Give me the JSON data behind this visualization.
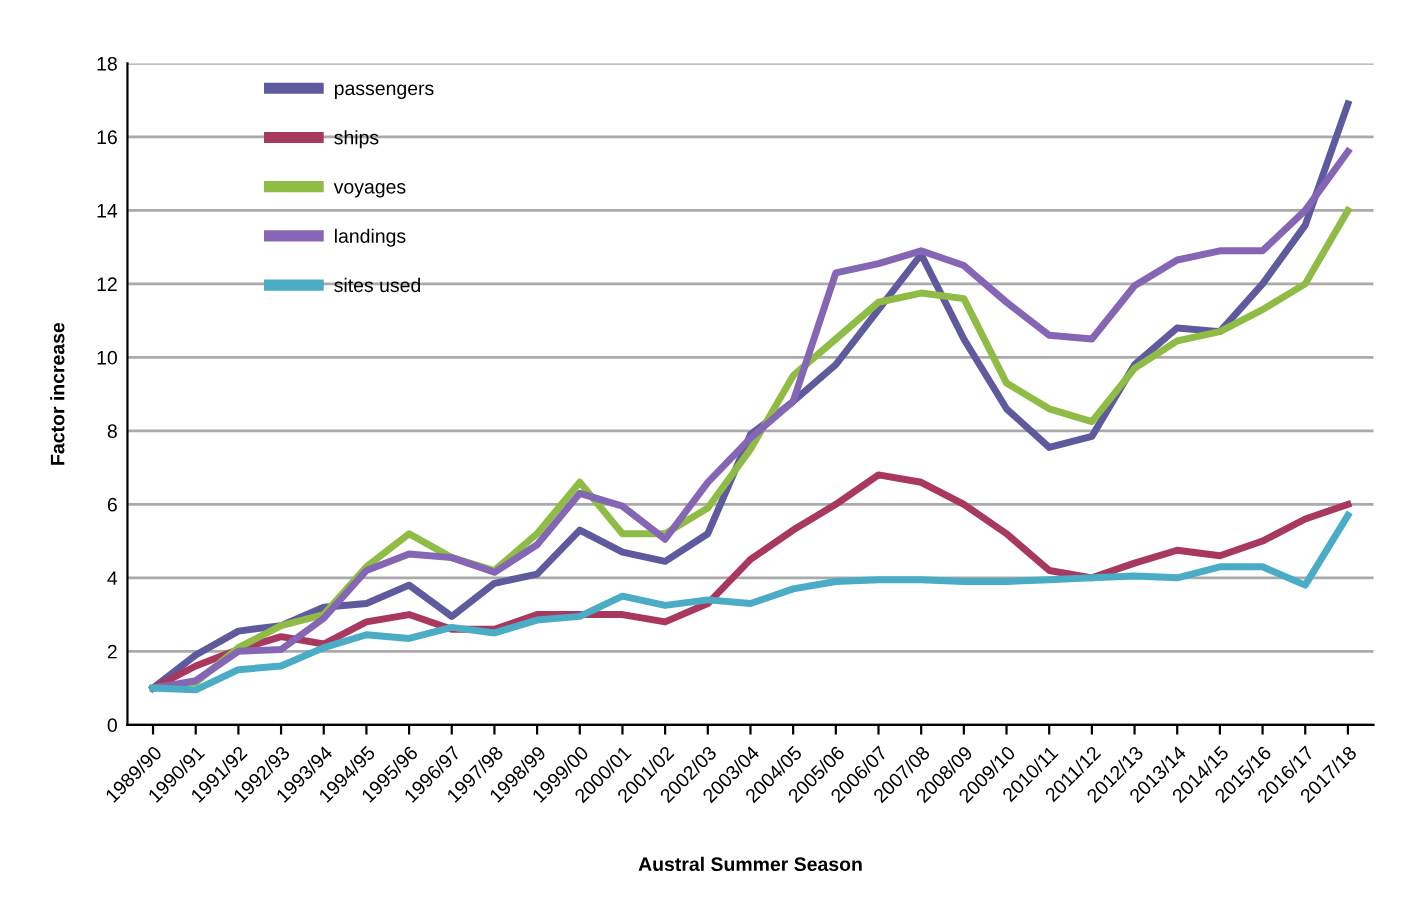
{
  "chart_data": {
    "type": "line",
    "xlabel": "Austral Summer Season",
    "ylabel": "Factor increase",
    "categories": [
      "1989/90",
      "1990/91",
      "1991/92",
      "1992/93",
      "1993/94",
      "1994/95",
      "1995/96",
      "1996/97",
      "1997/98",
      "1998/99",
      "1999/00",
      "2000/01",
      "2001/02",
      "2002/03",
      "2003/04",
      "2004/05",
      "2005/06",
      "2006/07",
      "2007/08",
      "2008/09",
      "2009/10",
      "2010/11",
      "2011/12",
      "2012/13",
      "2013/14",
      "2014/15",
      "2015/16",
      "2016/17",
      "2017/18"
    ],
    "series": [
      {
        "name": "passengers",
        "color": "#5f5a9e",
        "values": [
          1.0,
          1.9,
          2.55,
          2.7,
          3.2,
          3.3,
          3.8,
          2.95,
          3.85,
          4.1,
          5.3,
          4.7,
          4.45,
          5.2,
          7.9,
          8.8,
          9.8,
          11.3,
          12.8,
          10.5,
          8.6,
          7.55,
          7.85,
          9.8,
          10.8,
          10.7,
          12.0,
          13.6,
          16.9
        ]
      },
      {
        "name": "ships",
        "color": "#a8385d",
        "values": [
          1.0,
          1.6,
          2.05,
          2.4,
          2.2,
          2.8,
          3.0,
          2.6,
          2.6,
          3.0,
          3.0,
          3.0,
          2.8,
          3.3,
          4.5,
          5.3,
          6.0,
          6.8,
          6.6,
          6.0,
          5.2,
          4.2,
          4.0,
          4.4,
          4.75,
          4.6,
          5.0,
          5.6,
          6.0
        ]
      },
      {
        "name": "voyages",
        "color": "#8fbc45",
        "values": [
          1.0,
          1.15,
          2.1,
          2.7,
          3.0,
          4.3,
          5.2,
          4.55,
          4.2,
          5.2,
          6.6,
          5.2,
          5.2,
          5.9,
          7.5,
          9.5,
          10.5,
          11.5,
          11.75,
          11.6,
          9.3,
          8.6,
          8.25,
          9.7,
          10.45,
          10.7,
          11.3,
          12.0,
          14.0
        ]
      },
      {
        "name": "landings",
        "color": "#8466b5",
        "values": [
          1.0,
          1.2,
          2.0,
          2.05,
          2.9,
          4.2,
          4.65,
          4.55,
          4.15,
          4.9,
          6.3,
          5.95,
          5.05,
          6.6,
          7.8,
          8.8,
          12.3,
          12.55,
          12.9,
          12.5,
          11.5,
          10.6,
          10.5,
          11.95,
          12.65,
          12.9,
          12.9,
          14.0,
          15.6
        ]
      },
      {
        "name": "sites used",
        "color": "#4bacc6",
        "values": [
          1.0,
          0.95,
          1.5,
          1.6,
          2.1,
          2.45,
          2.35,
          2.65,
          2.5,
          2.85,
          2.95,
          3.5,
          3.25,
          3.4,
          3.3,
          3.7,
          3.9,
          3.95,
          3.95,
          3.9,
          3.9,
          3.95,
          4.0,
          4.05,
          4.0,
          4.3,
          4.3,
          3.8,
          5.7
        ]
      }
    ],
    "ylim": [
      0,
      18
    ],
    "yticks": [
      0,
      2,
      4,
      6,
      8,
      10,
      12,
      14,
      16,
      18
    ],
    "grid": "y",
    "legend": "top left",
    "marker": "none",
    "line_style": "solid"
  }
}
